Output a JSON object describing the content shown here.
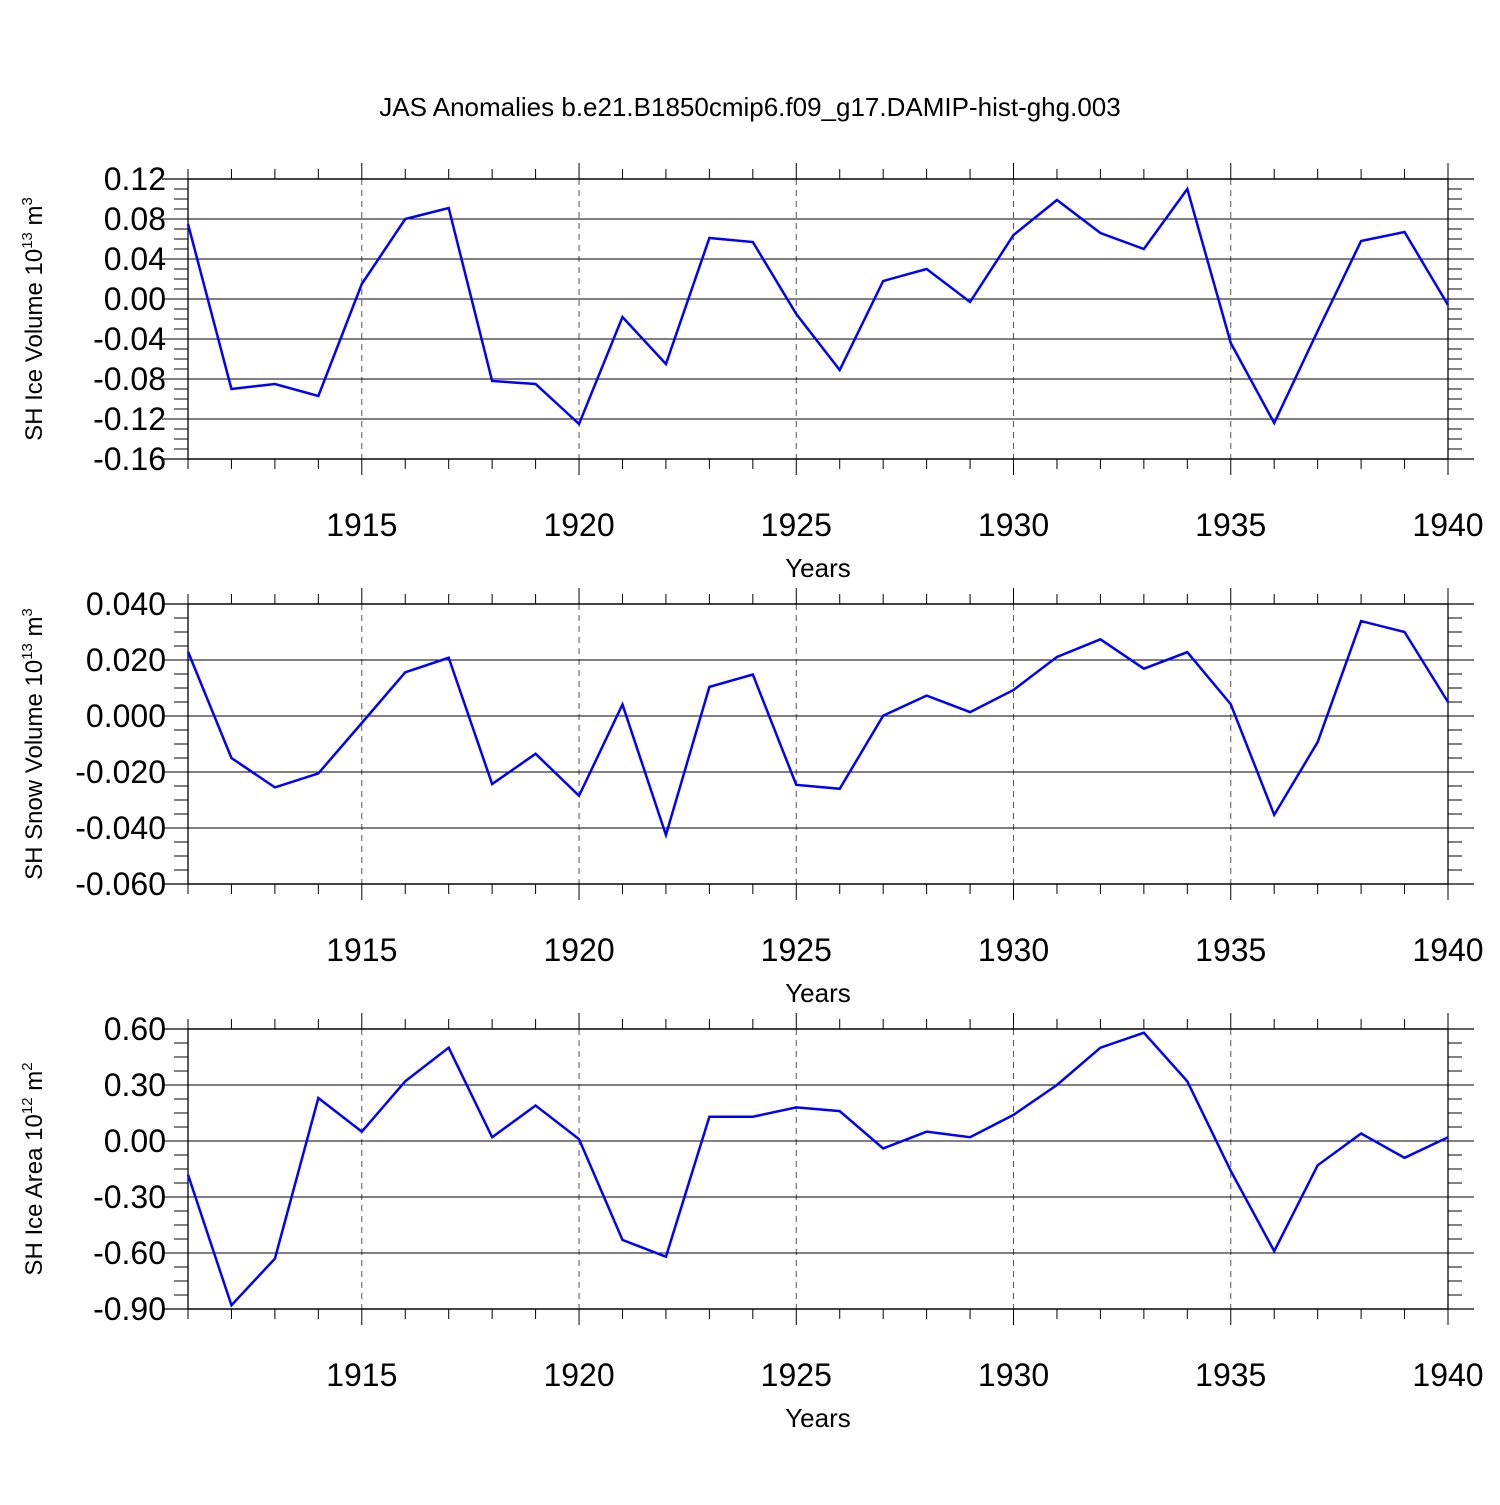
{
  "title": "JAS Anomalies b.e21.B1850cmip6.f09_g17.DAMIP-hist-ghg.003",
  "colors": {
    "series": "#0000ff",
    "axes": "#000000",
    "grid": "#555555"
  },
  "chart_data": [
    {
      "type": "line",
      "ylabel": {
        "base": "SH Ice Volume 10",
        "sup1": "13",
        "unit": " m",
        "sup2": "3"
      },
      "xlabel": "Years",
      "xlim": [
        1911,
        1940
      ],
      "xticks": [
        1915,
        1920,
        1925,
        1930,
        1935,
        1940
      ],
      "ylim": [
        -0.16,
        0.12
      ],
      "yticks": [
        -0.16,
        -0.12,
        -0.08,
        -0.04,
        0.0,
        0.04,
        0.08,
        0.12
      ],
      "ytick_labels": [
        "-0.16",
        "-0.12",
        "-0.08",
        "-0.04",
        "0.00",
        "0.04",
        "0.08",
        "0.12"
      ],
      "grid": "vertical dashed",
      "x": [
        1911,
        1912,
        1913,
        1914,
        1915,
        1916,
        1917,
        1918,
        1919,
        1920,
        1921,
        1922,
        1923,
        1924,
        1925,
        1926,
        1927,
        1928,
        1929,
        1930,
        1931,
        1932,
        1933,
        1934,
        1935,
        1936,
        1937,
        1938,
        1939,
        1940
      ],
      "values": [
        0.075,
        -0.09,
        -0.085,
        -0.097,
        0.015,
        0.08,
        0.091,
        -0.082,
        -0.085,
        -0.125,
        -0.018,
        -0.065,
        0.061,
        0.057,
        -0.015,
        -0.071,
        0.018,
        0.03,
        -0.003,
        0.064,
        0.099,
        0.066,
        0.05,
        0.11,
        -0.044,
        -0.124,
        -0.032,
        0.058,
        0.067,
        -0.006
      ]
    },
    {
      "type": "line",
      "ylabel": {
        "base": "SH Snow Volume 10",
        "sup1": "13",
        "unit": " m",
        "sup2": "3"
      },
      "xlabel": "Years",
      "xlim": [
        1911,
        1940
      ],
      "xticks": [
        1915,
        1920,
        1925,
        1930,
        1935,
        1940
      ],
      "ylim": [
        -0.06,
        0.04
      ],
      "yticks": [
        -0.06,
        -0.04,
        -0.02,
        0.0,
        0.02,
        0.04
      ],
      "ytick_labels": [
        "-0.060",
        "-0.040",
        "-0.020",
        "0.000",
        "0.020",
        "0.040"
      ],
      "grid": "vertical dashed",
      "x": [
        1911,
        1912,
        1913,
        1914,
        1915,
        1916,
        1917,
        1918,
        1919,
        1920,
        1921,
        1922,
        1923,
        1924,
        1925,
        1926,
        1927,
        1928,
        1929,
        1930,
        1931,
        1932,
        1933,
        1934,
        1935,
        1936,
        1937,
        1938,
        1939,
        1940
      ],
      "values": [
        0.023,
        -0.015,
        -0.0255,
        -0.0205,
        -0.0025,
        0.0156,
        0.0208,
        -0.0243,
        -0.0135,
        -0.0285,
        0.0041,
        -0.0425,
        0.0104,
        0.0148,
        -0.0246,
        -0.026,
        0.0001,
        0.0073,
        0.0014,
        0.0093,
        0.0211,
        0.0274,
        0.0169,
        0.0228,
        0.0042,
        -0.0353,
        -0.0093,
        0.0339,
        0.03,
        0.005
      ]
    },
    {
      "type": "line",
      "ylabel": {
        "base": "SH Ice Area 10",
        "sup1": "12",
        "unit": " m",
        "sup2": "2"
      },
      "xlabel": "Years",
      "xlim": [
        1911,
        1940
      ],
      "xticks": [
        1915,
        1920,
        1925,
        1930,
        1935,
        1940
      ],
      "ylim": [
        -0.9,
        0.6
      ],
      "yticks": [
        -0.9,
        -0.6,
        -0.3,
        0.0,
        0.3,
        0.6
      ],
      "ytick_labels": [
        "-0.90",
        "-0.60",
        "-0.30",
        "0.00",
        "0.30",
        "0.60"
      ],
      "grid": "vertical dashed",
      "x": [
        1911,
        1912,
        1913,
        1914,
        1915,
        1916,
        1917,
        1918,
        1919,
        1920,
        1921,
        1922,
        1923,
        1924,
        1925,
        1926,
        1927,
        1928,
        1929,
        1930,
        1931,
        1932,
        1933,
        1934,
        1935,
        1936,
        1937,
        1938,
        1939,
        1940
      ],
      "values": [
        -0.18,
        -0.88,
        -0.63,
        0.23,
        0.05,
        0.32,
        0.5,
        0.02,
        0.19,
        0.01,
        -0.53,
        -0.62,
        0.13,
        0.13,
        0.18,
        0.16,
        -0.04,
        0.05,
        0.02,
        0.14,
        0.3,
        0.5,
        0.58,
        0.32,
        -0.16,
        -0.59,
        -0.13,
        0.04,
        -0.09,
        0.02
      ]
    }
  ]
}
